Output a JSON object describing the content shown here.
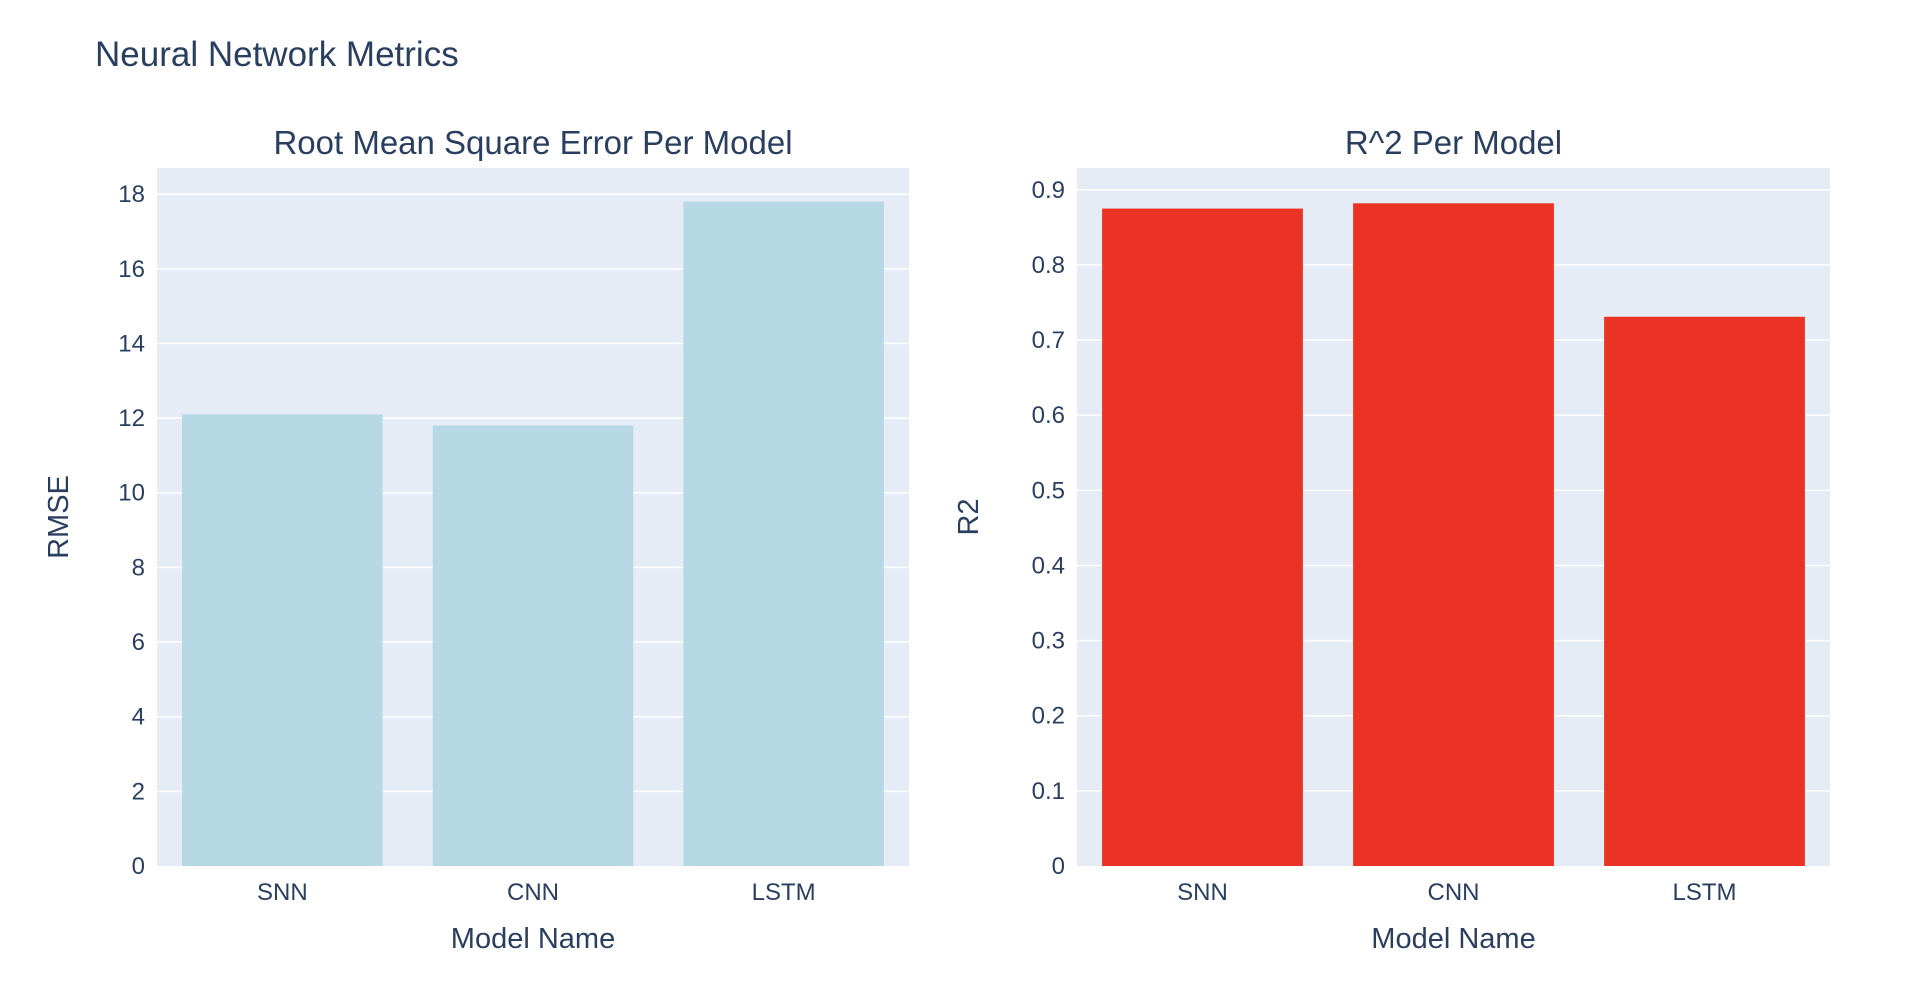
{
  "chart_data": {
    "title": "Neural Network Metrics",
    "subplots": [
      {
        "type": "bar",
        "title": "Root Mean Square Error Per Model",
        "xlabel": "Model Name",
        "ylabel": "RMSE",
        "categories": [
          "SNN",
          "CNN",
          "LSTM"
        ],
        "values": [
          12.1,
          11.8,
          17.8
        ],
        "ylim": [
          0,
          18.7
        ],
        "yticks": [
          0,
          2,
          4,
          6,
          8,
          10,
          12,
          14,
          16,
          18
        ],
        "ytick_labels": [
          "0",
          "2",
          "4",
          "6",
          "8",
          "10",
          "12",
          "14",
          "16",
          "18"
        ],
        "color": "#b6d8e4",
        "grid": true
      },
      {
        "type": "bar",
        "title": "R^2 Per Model",
        "xlabel": "Model Name",
        "ylabel": "R2",
        "categories": [
          "SNN",
          "CNN",
          "LSTM"
        ],
        "values": [
          0.875,
          0.882,
          0.731
        ],
        "ylim": [
          0,
          0.929
        ],
        "yticks": [
          0,
          0.1,
          0.2,
          0.3,
          0.4,
          0.5,
          0.6,
          0.7,
          0.8,
          0.9
        ],
        "ytick_labels": [
          "0",
          "0.1",
          "0.2",
          "0.3",
          "0.4",
          "0.5",
          "0.6",
          "0.7",
          "0.8",
          "0.9"
        ],
        "color": "#ea3324",
        "grid": true
      }
    ]
  }
}
